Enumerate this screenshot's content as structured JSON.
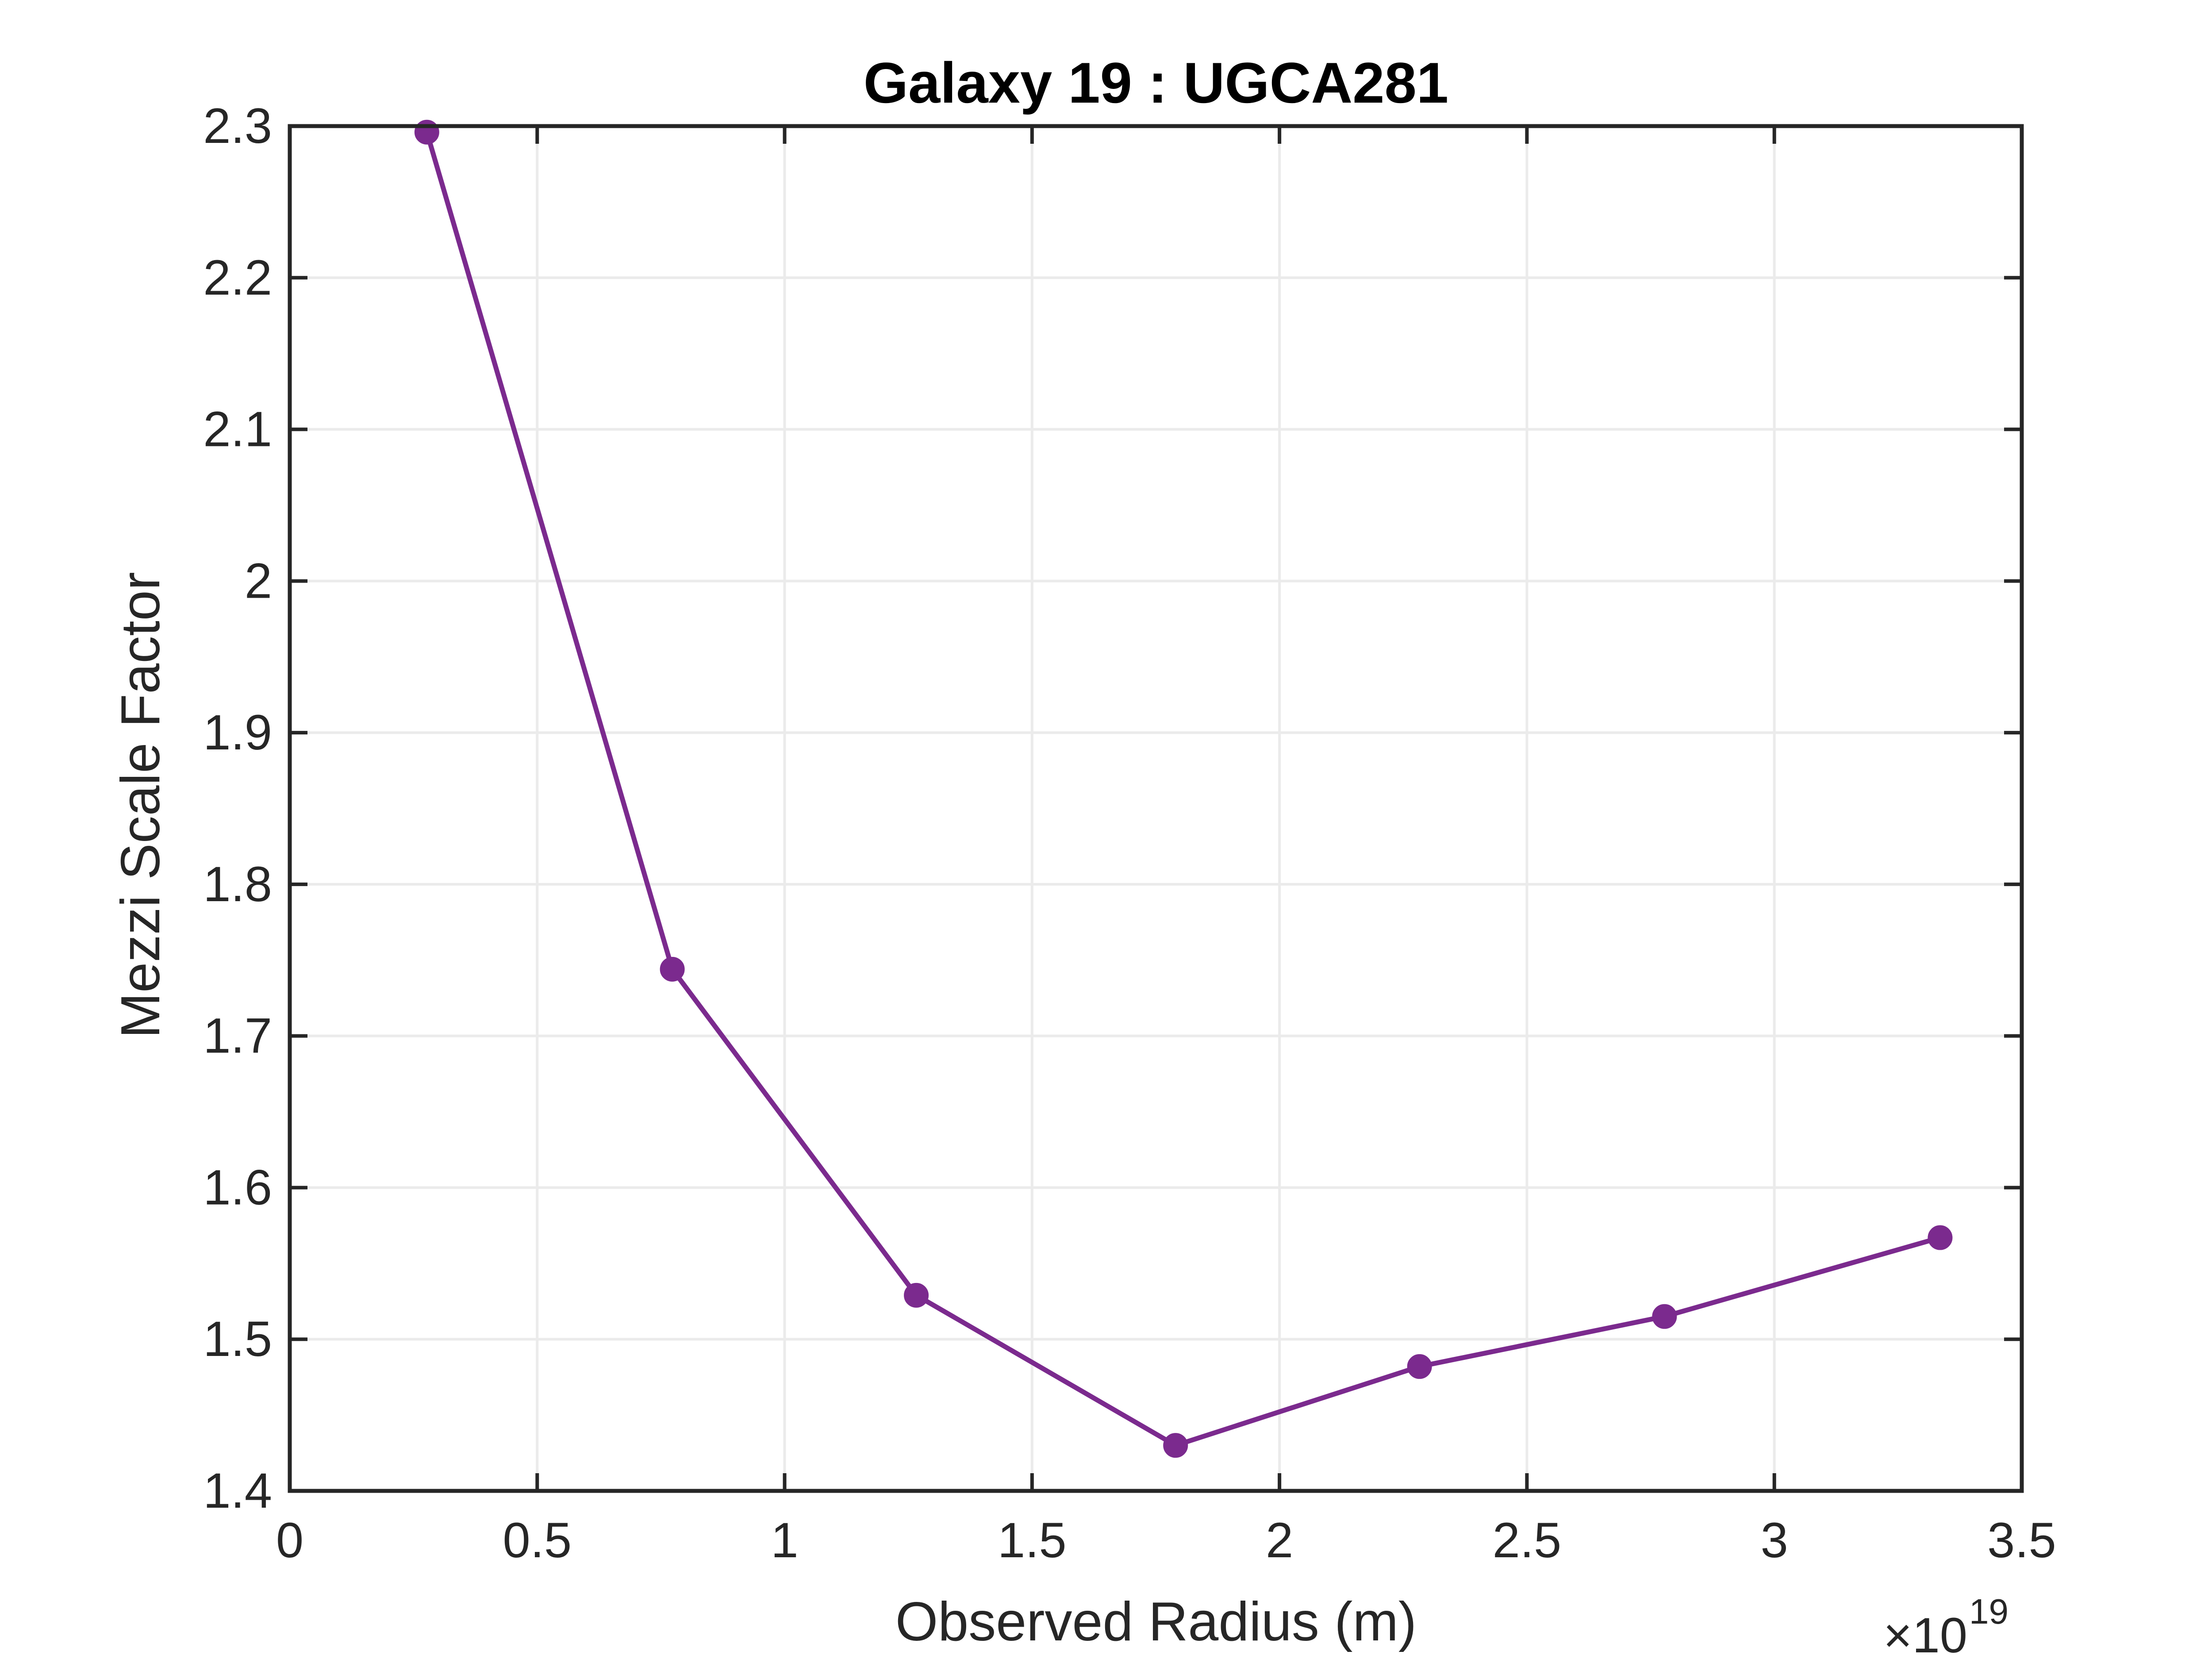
{
  "chart_data": {
    "type": "line",
    "title": "Galaxy 19 : UGCA281",
    "xlabel": "Observed Radius (m)",
    "ylabel": "Mezzi Scale Factor",
    "x_exponent": {
      "times": "×10",
      "power": "19"
    },
    "xlim": [
      0,
      3.5
    ],
    "ylim": [
      1.4,
      2.3
    ],
    "x_ticks": [
      0,
      0.5,
      1,
      1.5,
      2,
      2.5,
      3,
      3.5
    ],
    "x_tick_labels": [
      "0",
      "0.5",
      "1",
      "1.5",
      "2",
      "2.5",
      "3",
      "3.5"
    ],
    "y_ticks": [
      1.4,
      1.5,
      1.6,
      1.7,
      1.8,
      1.9,
      2.0,
      2.1,
      2.2,
      2.3
    ],
    "y_tick_labels": [
      "1.4",
      "1.5",
      "1.6",
      "1.7",
      "1.8",
      "1.9",
      "2",
      "2.1",
      "2.2",
      "2.3"
    ],
    "grid": true,
    "series": [
      {
        "x": [
          0.277,
          0.773,
          1.266,
          1.79,
          2.283,
          2.778,
          3.335
        ],
        "y": [
          2.296,
          1.744,
          1.529,
          1.43,
          1.482,
          1.515,
          1.567
        ],
        "color": "#7B2A8E",
        "marker": "circle"
      }
    ]
  },
  "colors": {
    "series": "#7B2A8E",
    "axes": "#262626",
    "grid": "#ebebeb",
    "background": "#ffffff"
  }
}
